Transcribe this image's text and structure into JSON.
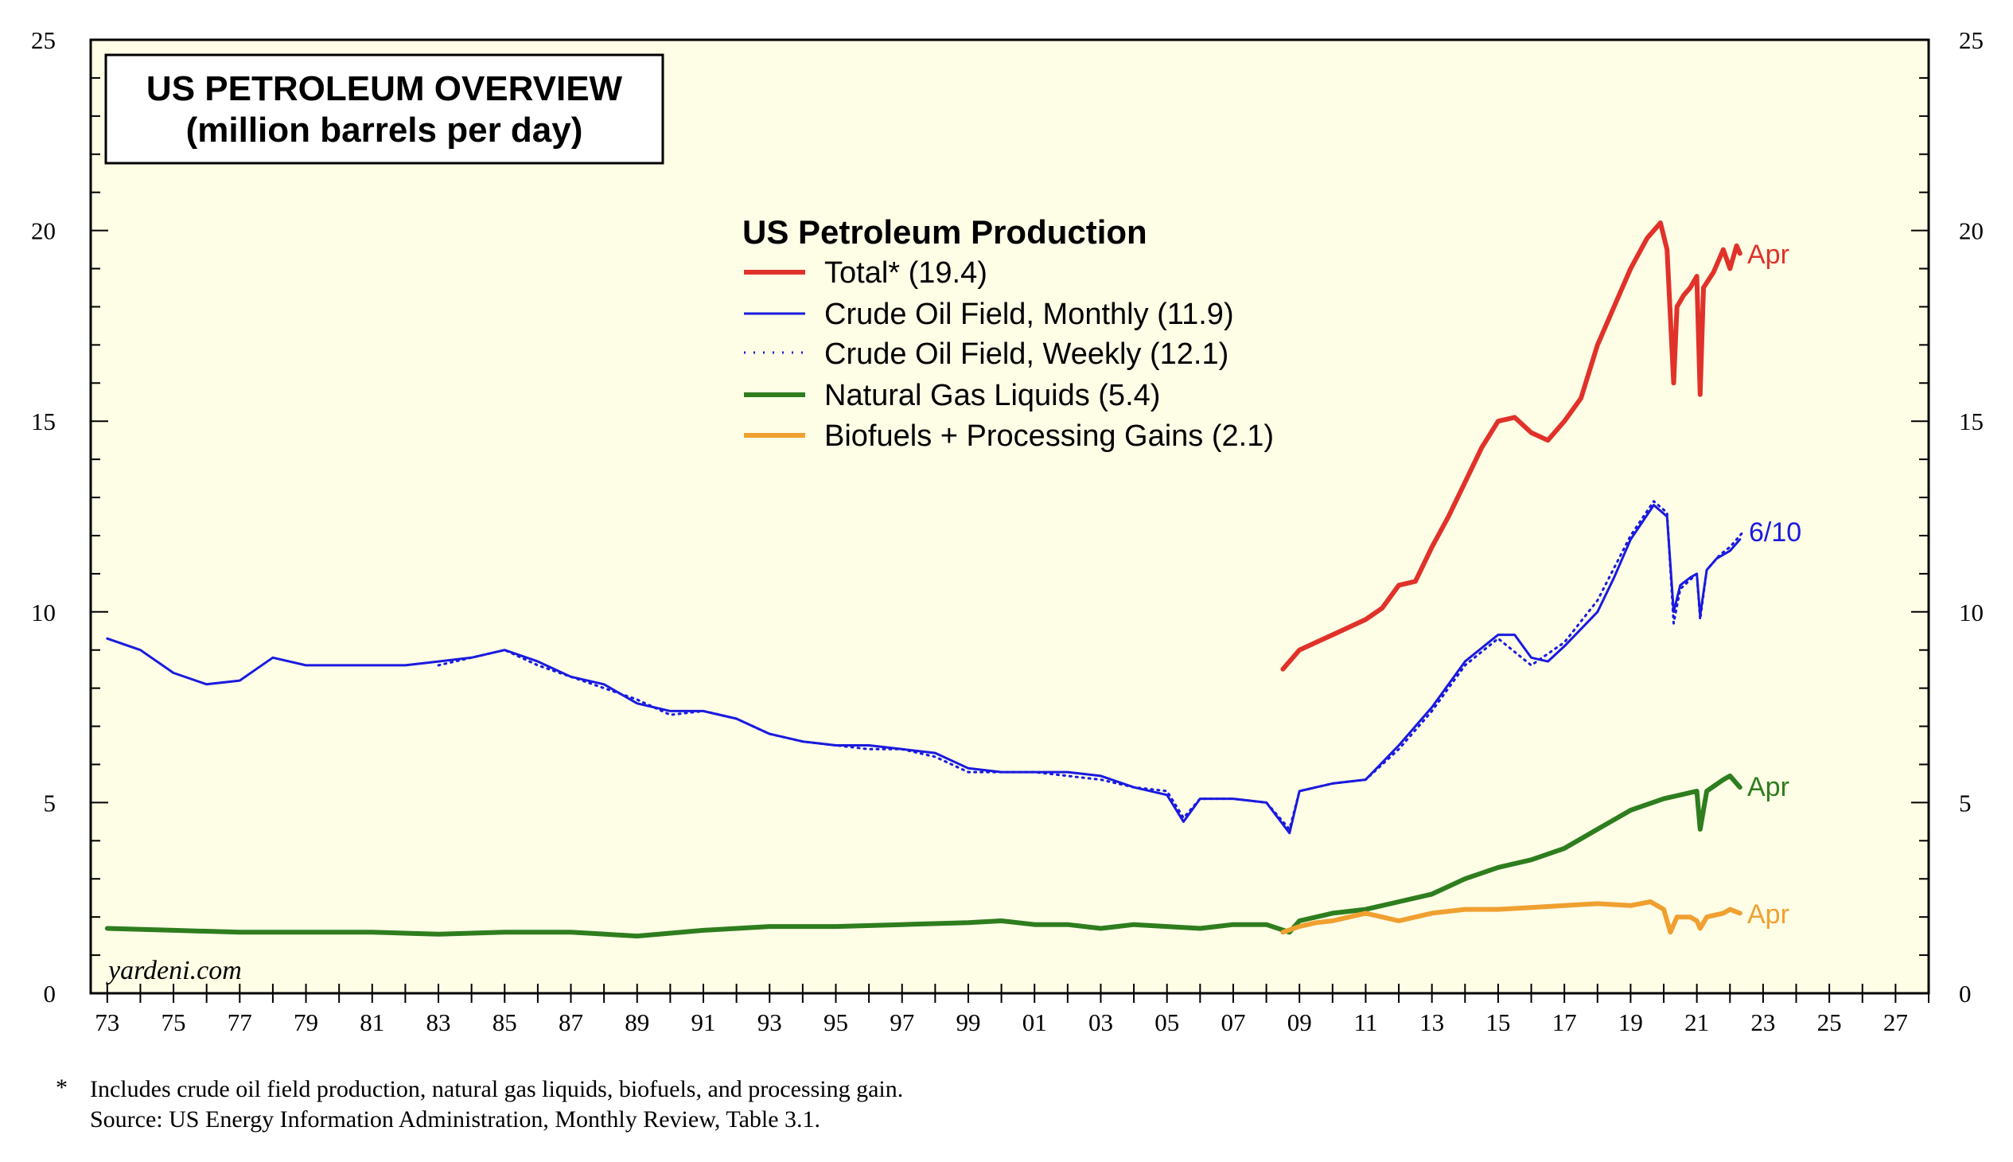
{
  "colors": {
    "background": "#fefde6",
    "total": "#e0322a",
    "crude": "#1a1adf",
    "ngl": "#2e7d1e",
    "bio": "#f0a030"
  },
  "title_box": {
    "line1": "US PETROLEUM OVERVIEW",
    "line2": "(million barrels per day)"
  },
  "watermark": "yardeni.com",
  "footnote": {
    "star": "*",
    "line1": "Includes crude oil field production, natural gas liquids, biofuels, and processing gain.",
    "line2": "Source: US Energy Information Administration, Monthly Review, Table 3.1."
  },
  "chart_data": {
    "type": "line",
    "title": "US Petroleum Production",
    "subtitle": "(million barrels per day)",
    "xlim": [
      1972.5,
      2028
    ],
    "ylim": [
      0,
      25
    ],
    "y_ticks": [
      0,
      5,
      10,
      15,
      20,
      25
    ],
    "x_ticks": [
      {
        "year": 1973,
        "label": "73"
      },
      {
        "year": 1975,
        "label": "75"
      },
      {
        "year": 1977,
        "label": "77"
      },
      {
        "year": 1979,
        "label": "79"
      },
      {
        "year": 1981,
        "label": "81"
      },
      {
        "year": 1983,
        "label": "83"
      },
      {
        "year": 1985,
        "label": "85"
      },
      {
        "year": 1987,
        "label": "87"
      },
      {
        "year": 1989,
        "label": "89"
      },
      {
        "year": 1991,
        "label": "91"
      },
      {
        "year": 1993,
        "label": "93"
      },
      {
        "year": 1995,
        "label": "95"
      },
      {
        "year": 1997,
        "label": "97"
      },
      {
        "year": 1999,
        "label": "99"
      },
      {
        "year": 2001,
        "label": "01"
      },
      {
        "year": 2003,
        "label": "03"
      },
      {
        "year": 2005,
        "label": "05"
      },
      {
        "year": 2007,
        "label": "07"
      },
      {
        "year": 2009,
        "label": "09"
      },
      {
        "year": 2011,
        "label": "11"
      },
      {
        "year": 2013,
        "label": "13"
      },
      {
        "year": 2015,
        "label": "15"
      },
      {
        "year": 2017,
        "label": "17"
      },
      {
        "year": 2019,
        "label": "19"
      },
      {
        "year": 2021,
        "label": "21"
      },
      {
        "year": 2023,
        "label": "23"
      },
      {
        "year": 2025,
        "label": "25"
      },
      {
        "year": 2027,
        "label": "27"
      }
    ],
    "series": [
      {
        "key": "total",
        "name": "Total* (19.4)",
        "style": "solid",
        "end_label": "Apr",
        "points": [
          [
            2008.5,
            8.5
          ],
          [
            2009.0,
            9.0
          ],
          [
            2009.5,
            9.2
          ],
          [
            2010.0,
            9.4
          ],
          [
            2010.5,
            9.6
          ],
          [
            2011.0,
            9.8
          ],
          [
            2011.5,
            10.1
          ],
          [
            2012.0,
            10.7
          ],
          [
            2012.5,
            10.8
          ],
          [
            2013.0,
            11.7
          ],
          [
            2013.5,
            12.5
          ],
          [
            2014.0,
            13.4
          ],
          [
            2014.5,
            14.3
          ],
          [
            2015.0,
            15.0
          ],
          [
            2015.5,
            15.1
          ],
          [
            2016.0,
            14.7
          ],
          [
            2016.5,
            14.5
          ],
          [
            2017.0,
            15.0
          ],
          [
            2017.5,
            15.6
          ],
          [
            2018.0,
            17.0
          ],
          [
            2018.5,
            18.0
          ],
          [
            2019.0,
            19.0
          ],
          [
            2019.5,
            19.8
          ],
          [
            2019.9,
            20.2
          ],
          [
            2020.1,
            19.5
          ],
          [
            2020.3,
            16.0
          ],
          [
            2020.4,
            18.0
          ],
          [
            2020.6,
            18.3
          ],
          [
            2020.8,
            18.5
          ],
          [
            2021.0,
            18.8
          ],
          [
            2021.1,
            15.7
          ],
          [
            2021.2,
            18.5
          ],
          [
            2021.5,
            18.9
          ],
          [
            2021.8,
            19.5
          ],
          [
            2022.0,
            19.0
          ],
          [
            2022.2,
            19.6
          ],
          [
            2022.3,
            19.4
          ]
        ]
      },
      {
        "key": "crude_monthly",
        "name": "Crude Oil Field, Monthly (11.9)",
        "style": "solid",
        "points": [
          [
            1973.0,
            9.3
          ],
          [
            1974.0,
            9.0
          ],
          [
            1975.0,
            8.4
          ],
          [
            1976.0,
            8.1
          ],
          [
            1977.0,
            8.2
          ],
          [
            1977.5,
            8.5
          ],
          [
            1978.0,
            8.8
          ],
          [
            1979.0,
            8.6
          ],
          [
            1980.0,
            8.6
          ],
          [
            1981.0,
            8.6
          ],
          [
            1982.0,
            8.6
          ],
          [
            1983.0,
            8.7
          ],
          [
            1984.0,
            8.8
          ],
          [
            1985.0,
            9.0
          ],
          [
            1986.0,
            8.7
          ],
          [
            1987.0,
            8.3
          ],
          [
            1988.0,
            8.1
          ],
          [
            1989.0,
            7.6
          ],
          [
            1990.0,
            7.4
          ],
          [
            1991.0,
            7.4
          ],
          [
            1992.0,
            7.2
          ],
          [
            1993.0,
            6.8
          ],
          [
            1994.0,
            6.6
          ],
          [
            1995.0,
            6.5
          ],
          [
            1996.0,
            6.5
          ],
          [
            1997.0,
            6.4
          ],
          [
            1998.0,
            6.3
          ],
          [
            1999.0,
            5.9
          ],
          [
            2000.0,
            5.8
          ],
          [
            2001.0,
            5.8
          ],
          [
            2002.0,
            5.8
          ],
          [
            2003.0,
            5.7
          ],
          [
            2004.0,
            5.4
          ],
          [
            2005.0,
            5.2
          ],
          [
            2005.5,
            4.5
          ],
          [
            2006.0,
            5.1
          ],
          [
            2007.0,
            5.1
          ],
          [
            2008.0,
            5.0
          ],
          [
            2008.7,
            4.2
          ],
          [
            2009.0,
            5.3
          ],
          [
            2010.0,
            5.5
          ],
          [
            2011.0,
            5.6
          ],
          [
            2012.0,
            6.5
          ],
          [
            2013.0,
            7.5
          ],
          [
            2014.0,
            8.7
          ],
          [
            2015.0,
            9.4
          ],
          [
            2015.5,
            9.4
          ],
          [
            2016.0,
            8.8
          ],
          [
            2016.5,
            8.7
          ],
          [
            2017.0,
            9.1
          ],
          [
            2018.0,
            10.0
          ],
          [
            2018.5,
            10.9
          ],
          [
            2019.0,
            11.9
          ],
          [
            2019.7,
            12.8
          ],
          [
            2020.1,
            12.5
          ],
          [
            2020.3,
            10.0
          ],
          [
            2020.5,
            10.7
          ],
          [
            2020.8,
            10.9
          ],
          [
            2021.0,
            11.0
          ],
          [
            2021.1,
            9.9
          ],
          [
            2021.3,
            11.1
          ],
          [
            2021.6,
            11.4
          ],
          [
            2022.0,
            11.6
          ],
          [
            2022.3,
            11.9
          ]
        ]
      },
      {
        "key": "crude_weekly",
        "name": "Crude Oil Field, Weekly (12.1)",
        "style": "dotted",
        "end_label": "6/10",
        "points": [
          [
            1983.0,
            8.6
          ],
          [
            1984.0,
            8.8
          ],
          [
            1985.0,
            9.0
          ],
          [
            1986.0,
            8.6
          ],
          [
            1987.0,
            8.3
          ],
          [
            1988.0,
            8.0
          ],
          [
            1989.0,
            7.7
          ],
          [
            1990.0,
            7.3
          ],
          [
            1991.0,
            7.4
          ],
          [
            1992.0,
            7.2
          ],
          [
            1993.0,
            6.8
          ],
          [
            1994.0,
            6.6
          ],
          [
            1995.0,
            6.5
          ],
          [
            1996.0,
            6.4
          ],
          [
            1997.0,
            6.4
          ],
          [
            1998.0,
            6.2
          ],
          [
            1999.0,
            5.8
          ],
          [
            2000.0,
            5.8
          ],
          [
            2001.0,
            5.8
          ],
          [
            2002.0,
            5.7
          ],
          [
            2003.0,
            5.6
          ],
          [
            2004.0,
            5.4
          ],
          [
            2005.0,
            5.3
          ],
          [
            2005.5,
            4.6
          ],
          [
            2006.0,
            5.1
          ],
          [
            2007.0,
            5.1
          ],
          [
            2008.0,
            5.0
          ],
          [
            2008.7,
            4.3
          ],
          [
            2009.0,
            5.3
          ],
          [
            2010.0,
            5.5
          ],
          [
            2011.0,
            5.6
          ],
          [
            2012.0,
            6.4
          ],
          [
            2013.0,
            7.4
          ],
          [
            2014.0,
            8.6
          ],
          [
            2015.0,
            9.3
          ],
          [
            2016.0,
            8.6
          ],
          [
            2017.0,
            9.2
          ],
          [
            2018.0,
            10.3
          ],
          [
            2019.0,
            12.0
          ],
          [
            2019.7,
            12.9
          ],
          [
            2020.1,
            12.6
          ],
          [
            2020.3,
            9.7
          ],
          [
            2020.5,
            10.6
          ],
          [
            2021.0,
            11.0
          ],
          [
            2021.1,
            9.8
          ],
          [
            2021.3,
            11.1
          ],
          [
            2021.7,
            11.5
          ],
          [
            2022.0,
            11.7
          ],
          [
            2022.4,
            12.1
          ]
        ]
      },
      {
        "key": "ngl",
        "name": "Natural Gas Liquids (5.4)",
        "style": "solid",
        "end_label": "Apr",
        "points": [
          [
            1973.0,
            1.7
          ],
          [
            1975.0,
            1.65
          ],
          [
            1977.0,
            1.6
          ],
          [
            1979.0,
            1.6
          ],
          [
            1981.0,
            1.6
          ],
          [
            1983.0,
            1.55
          ],
          [
            1985.0,
            1.6
          ],
          [
            1987.0,
            1.6
          ],
          [
            1989.0,
            1.5
          ],
          [
            1991.0,
            1.65
          ],
          [
            1993.0,
            1.75
          ],
          [
            1995.0,
            1.75
          ],
          [
            1997.0,
            1.8
          ],
          [
            1999.0,
            1.85
          ],
          [
            2000.0,
            1.9
          ],
          [
            2001.0,
            1.8
          ],
          [
            2002.0,
            1.8
          ],
          [
            2003.0,
            1.7
          ],
          [
            2004.0,
            1.8
          ],
          [
            2005.0,
            1.75
          ],
          [
            2006.0,
            1.7
          ],
          [
            2007.0,
            1.8
          ],
          [
            2008.0,
            1.8
          ],
          [
            2008.7,
            1.6
          ],
          [
            2009.0,
            1.9
          ],
          [
            2010.0,
            2.1
          ],
          [
            2011.0,
            2.2
          ],
          [
            2012.0,
            2.4
          ],
          [
            2013.0,
            2.6
          ],
          [
            2014.0,
            3.0
          ],
          [
            2015.0,
            3.3
          ],
          [
            2016.0,
            3.5
          ],
          [
            2017.0,
            3.8
          ],
          [
            2018.0,
            4.3
          ],
          [
            2019.0,
            4.8
          ],
          [
            2020.0,
            5.1
          ],
          [
            2020.5,
            5.2
          ],
          [
            2021.0,
            5.3
          ],
          [
            2021.1,
            4.3
          ],
          [
            2021.3,
            5.3
          ],
          [
            2021.8,
            5.6
          ],
          [
            2022.0,
            5.7
          ],
          [
            2022.3,
            5.4
          ]
        ]
      },
      {
        "key": "bio",
        "name": "Biofuels + Processing Gains (2.1)",
        "style": "solid",
        "end_label": "Apr",
        "points": [
          [
            2008.5,
            1.6
          ],
          [
            2009.0,
            1.75
          ],
          [
            2009.5,
            1.85
          ],
          [
            2010.0,
            1.9
          ],
          [
            2010.5,
            2.0
          ],
          [
            2011.0,
            2.1
          ],
          [
            2011.5,
            2.0
          ],
          [
            2012.0,
            1.9
          ],
          [
            2013.0,
            2.1
          ],
          [
            2014.0,
            2.2
          ],
          [
            2015.0,
            2.2
          ],
          [
            2016.0,
            2.25
          ],
          [
            2017.0,
            2.3
          ],
          [
            2018.0,
            2.35
          ],
          [
            2019.0,
            2.3
          ],
          [
            2019.6,
            2.4
          ],
          [
            2020.0,
            2.2
          ],
          [
            2020.2,
            1.6
          ],
          [
            2020.4,
            2.0
          ],
          [
            2020.8,
            2.0
          ],
          [
            2021.0,
            1.9
          ],
          [
            2021.1,
            1.7
          ],
          [
            2021.3,
            2.0
          ],
          [
            2021.8,
            2.1
          ],
          [
            2022.0,
            2.2
          ],
          [
            2022.3,
            2.1
          ]
        ]
      }
    ]
  }
}
